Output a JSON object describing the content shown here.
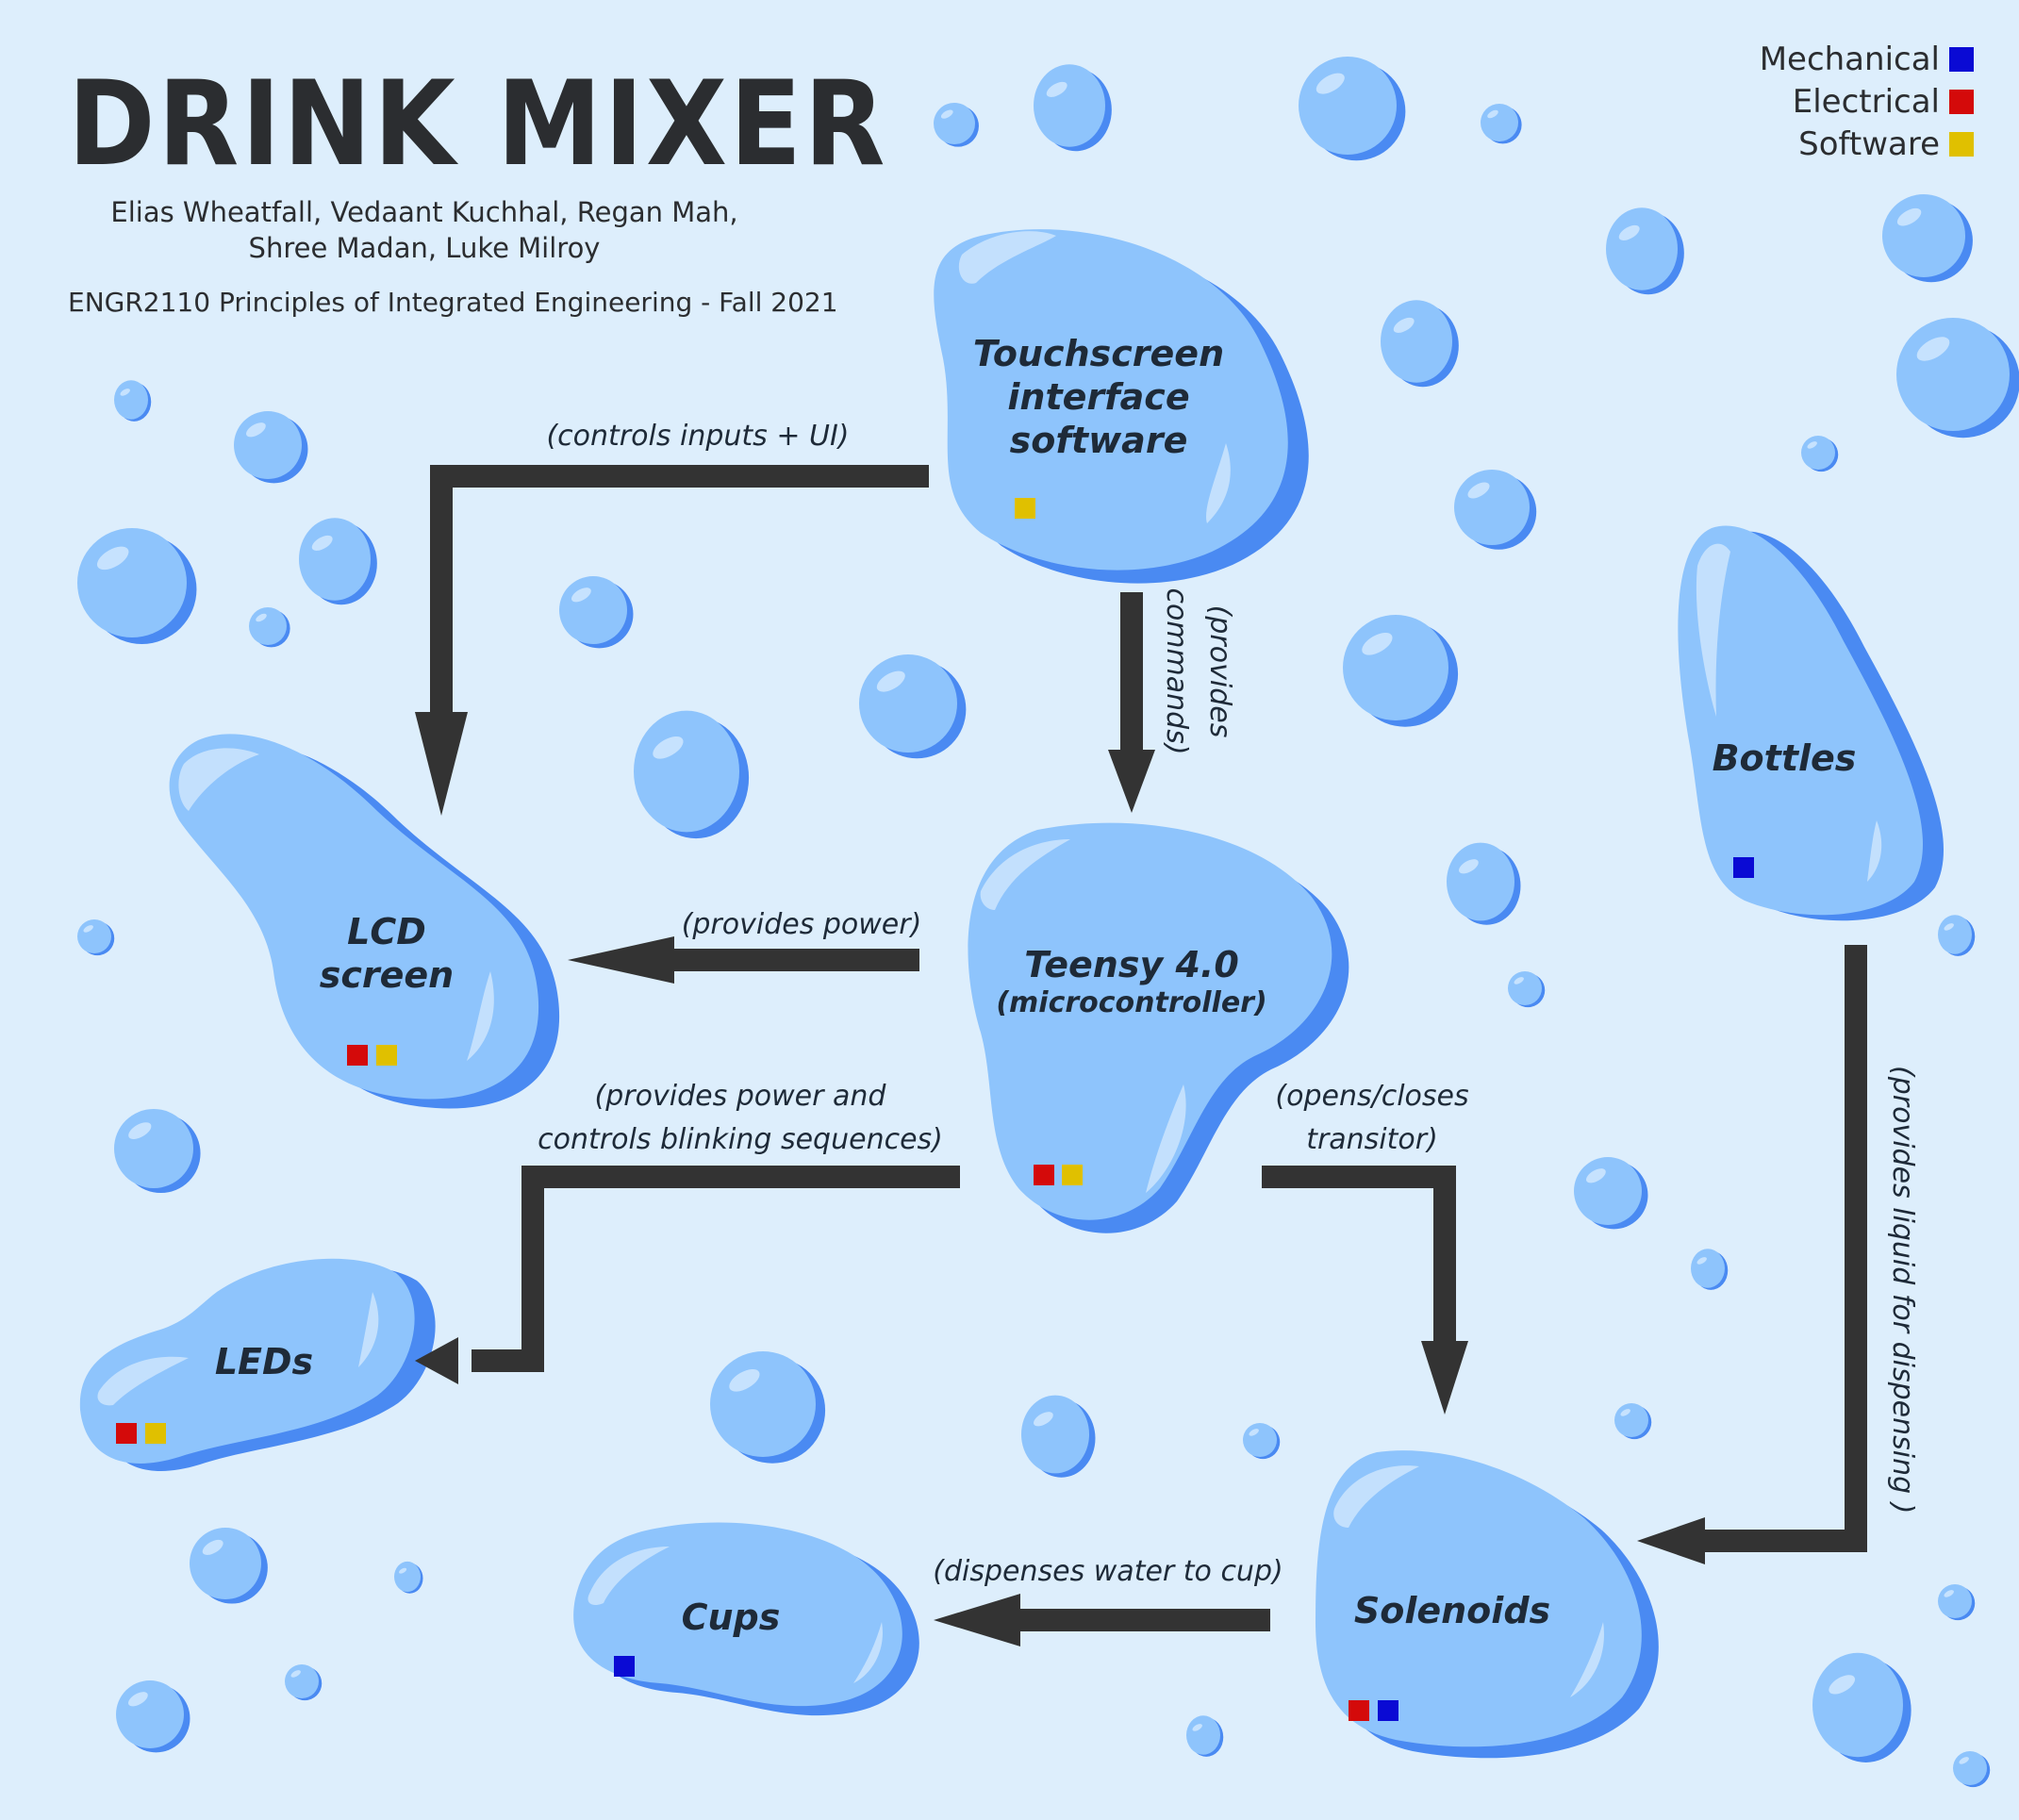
{
  "header": {
    "title": "DRINK MIXER",
    "authors_line1": "Elias Wheatfall, Vedaant Kuchhal, Regan Mah,",
    "authors_line2": "Shree Madan, Luke Milroy",
    "course": "ENGR2110 Principles of Integrated Engineering - Fall 2021"
  },
  "legend": {
    "mechanical": {
      "label": "Mechanical",
      "color": "#0a0ad4"
    },
    "electrical": {
      "label": "Electrical",
      "color": "#d40a0a"
    },
    "software": {
      "label": "Software",
      "color": "#e0c000"
    }
  },
  "nodes": {
    "touchscreen": {
      "line1": "Touchscreen",
      "line2": "interface",
      "line3": "software",
      "categories": [
        "software"
      ]
    },
    "lcd": {
      "line1": "LCD",
      "line2": "screen",
      "categories": [
        "electrical",
        "software"
      ]
    },
    "teensy": {
      "name": "Teensy 4.0",
      "sub": "(microcontroller)",
      "categories": [
        "electrical",
        "software"
      ]
    },
    "bottles": {
      "name": "Bottles",
      "categories": [
        "mechanical"
      ]
    },
    "leds": {
      "name": "LEDs",
      "categories": [
        "electrical",
        "software"
      ]
    },
    "solenoids": {
      "name": "Solenoids",
      "categories": [
        "electrical",
        "mechanical"
      ]
    },
    "cups": {
      "name": "Cups",
      "categories": [
        "mechanical"
      ]
    }
  },
  "edges": {
    "touchscreen_to_lcd": "(controls inputs + UI)",
    "touchscreen_to_teensy_1": "(provides",
    "touchscreen_to_teensy_2": "commands)",
    "teensy_to_lcd": "(provides power)",
    "teensy_to_leds_1": "(provides power and",
    "teensy_to_leds_2": "controls blinking sequences)",
    "teensy_to_solenoids_1": "(opens/closes",
    "teensy_to_solenoids_2": "transitor)",
    "bottles_to_solenoids": "(provides liquid for dispensing )",
    "solenoids_to_cups": "(dispenses water to cup)"
  },
  "colors": {
    "background": "#ddeefc",
    "blob_fill": "#8ec4fc",
    "blob_shadow": "#4a8af2",
    "highlight": "#d4eafe",
    "arrow": "#333333"
  }
}
